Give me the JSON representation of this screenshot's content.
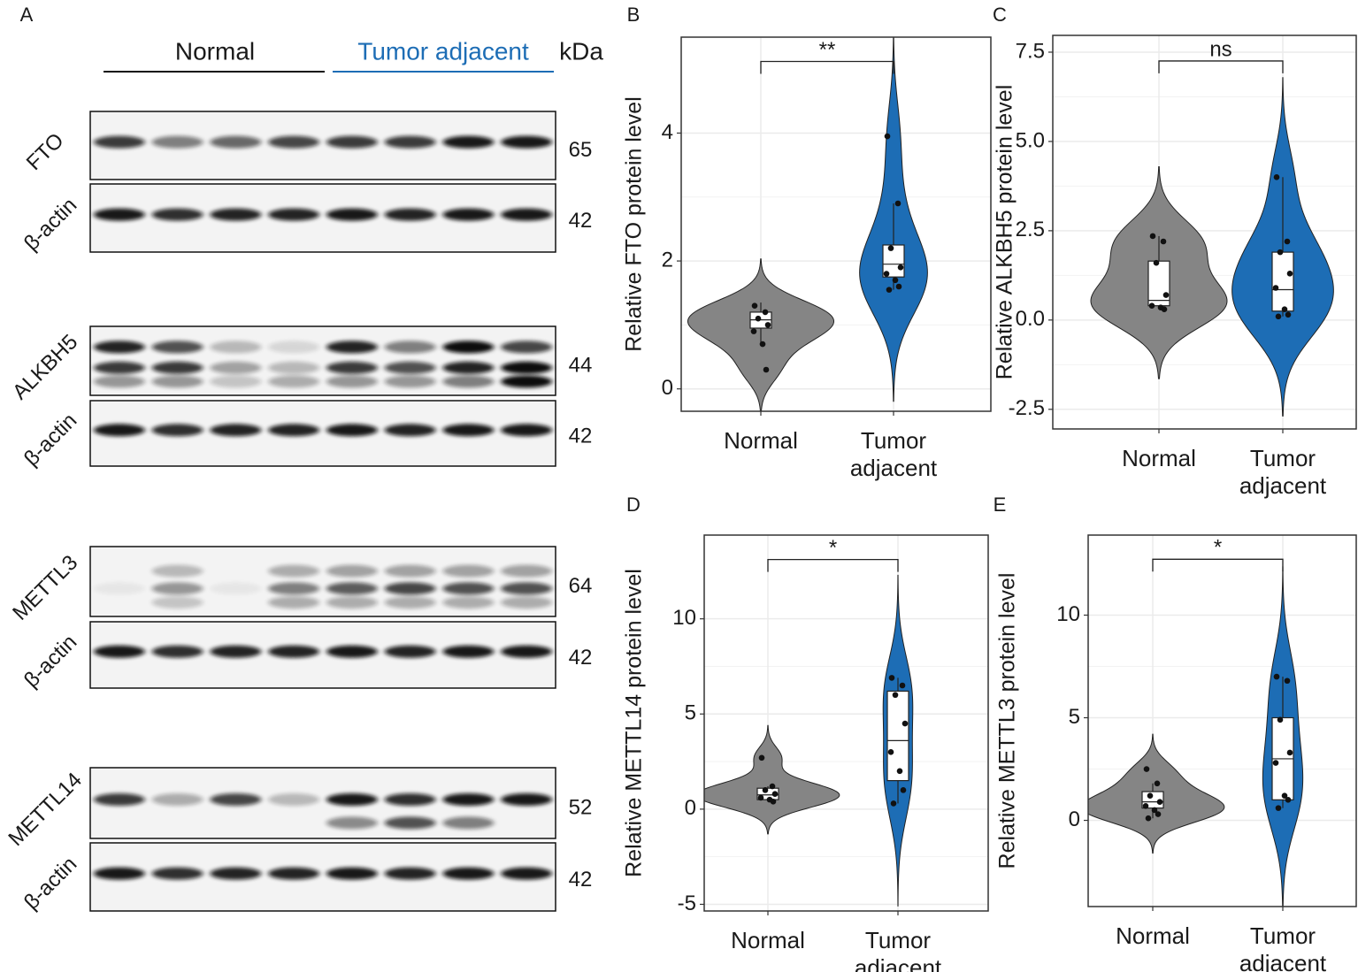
{
  "panel_a": {
    "label": "A",
    "groups": [
      "Normal",
      "Tumor adjacent"
    ],
    "unit": "kDa",
    "blots": [
      {
        "protein": "FTO",
        "kda": 65,
        "loading": "β-actin",
        "loading_kda": 42
      },
      {
        "protein": "ALKBH5",
        "kda": 44,
        "loading": "β-actin",
        "loading_kda": 42
      },
      {
        "protein": "METTL3",
        "kda": 64,
        "loading": "β-actin",
        "loading_kda": 42
      },
      {
        "protein": "METTL14",
        "kda": 52,
        "loading": "β-actin",
        "loading_kda": 42
      }
    ]
  },
  "chart_data": [
    {
      "type": "violin",
      "panel_label": "B",
      "ylabel": "Relative FTO protein level",
      "annotation": "**",
      "categories": [
        "Normal",
        "Tumor adjacent"
      ],
      "ylim": [
        -0.35,
        5.5
      ],
      "yticks": [
        0,
        2,
        4
      ],
      "grid": true,
      "groups": [
        {
          "color": "#858585",
          "points": [
            1.3,
            1.2,
            1.1,
            1.0,
            0.9,
            0.7,
            0.3
          ],
          "box": [
            0.7,
            0.95,
            1.08,
            1.2,
            1.35
          ]
        },
        {
          "color": "#1d6db5",
          "points": [
            3.95,
            2.9,
            2.2,
            1.9,
            1.8,
            1.7,
            1.6,
            1.55
          ],
          "box": [
            1.55,
            1.75,
            1.95,
            2.25,
            2.9
          ]
        }
      ]
    },
    {
      "type": "violin",
      "panel_label": "C",
      "ylabel": "Relative ALKBH5 protein level",
      "annotation": "ns",
      "categories": [
        "Normal",
        "Tumor adjacent"
      ],
      "ylim": [
        -3.05,
        7.97
      ],
      "yticks": [
        -2.5,
        {
          "value": 0,
          "label": "0.0"
        },
        2.5,
        {
          "value": 5,
          "label": "5.0"
        },
        7.5
      ],
      "grid": true,
      "groups": [
        {
          "color": "#858585",
          "points": [
            2.35,
            2.2,
            1.6,
            0.7,
            0.4,
            0.35,
            0.3
          ],
          "box": [
            0.3,
            0.4,
            0.55,
            1.65,
            2.35
          ]
        },
        {
          "color": "#1d6db5",
          "points": [
            4.0,
            2.2,
            1.9,
            1.3,
            0.9,
            0.3,
            0.15,
            0.1
          ],
          "box": [
            0.1,
            0.25,
            0.85,
            1.9,
            4.0
          ]
        }
      ]
    },
    {
      "type": "violin",
      "panel_label": "D",
      "ylabel": "Relative METTL14 protein level",
      "annotation": "*",
      "categories": [
        "Normal",
        "Tumor adjacent"
      ],
      "ylim": [
        -5.35,
        14.4
      ],
      "yticks": [
        -5,
        0,
        5,
        10
      ],
      "grid": true,
      "groups": [
        {
          "color": "#858585",
          "points": [
            2.7,
            1.2,
            1.0,
            0.8,
            0.6,
            0.5,
            0.4
          ],
          "box": [
            0.4,
            0.5,
            0.75,
            1.1,
            1.2
          ]
        },
        {
          "color": "#1d6db5",
          "points": [
            6.9,
            6.5,
            6.0,
            4.5,
            3.0,
            2.0,
            1.0,
            0.3
          ],
          "box": [
            0.3,
            1.5,
            3.6,
            6.2,
            6.9
          ]
        }
      ]
    },
    {
      "type": "violin",
      "panel_label": "E",
      "ylabel": "Relative METTL3 protein level",
      "annotation": "*",
      "categories": [
        "Normal",
        "Tumor adjacent"
      ],
      "ylim": [
        -4.2,
        13.9
      ],
      "yticks": [
        0,
        5,
        10
      ],
      "grid": true,
      "groups": [
        {
          "color": "#858585",
          "points": [
            2.5,
            1.8,
            1.2,
            0.9,
            0.7,
            0.5,
            0.3,
            0.1
          ],
          "box": [
            0.1,
            0.6,
            0.9,
            1.4,
            1.8
          ]
        },
        {
          "color": "#1d6db5",
          "points": [
            7.0,
            6.8,
            4.9,
            3.3,
            2.8,
            1.2,
            1.0,
            0.6
          ],
          "box": [
            0.6,
            1.0,
            3.0,
            5.0,
            7.0
          ]
        }
      ]
    }
  ]
}
